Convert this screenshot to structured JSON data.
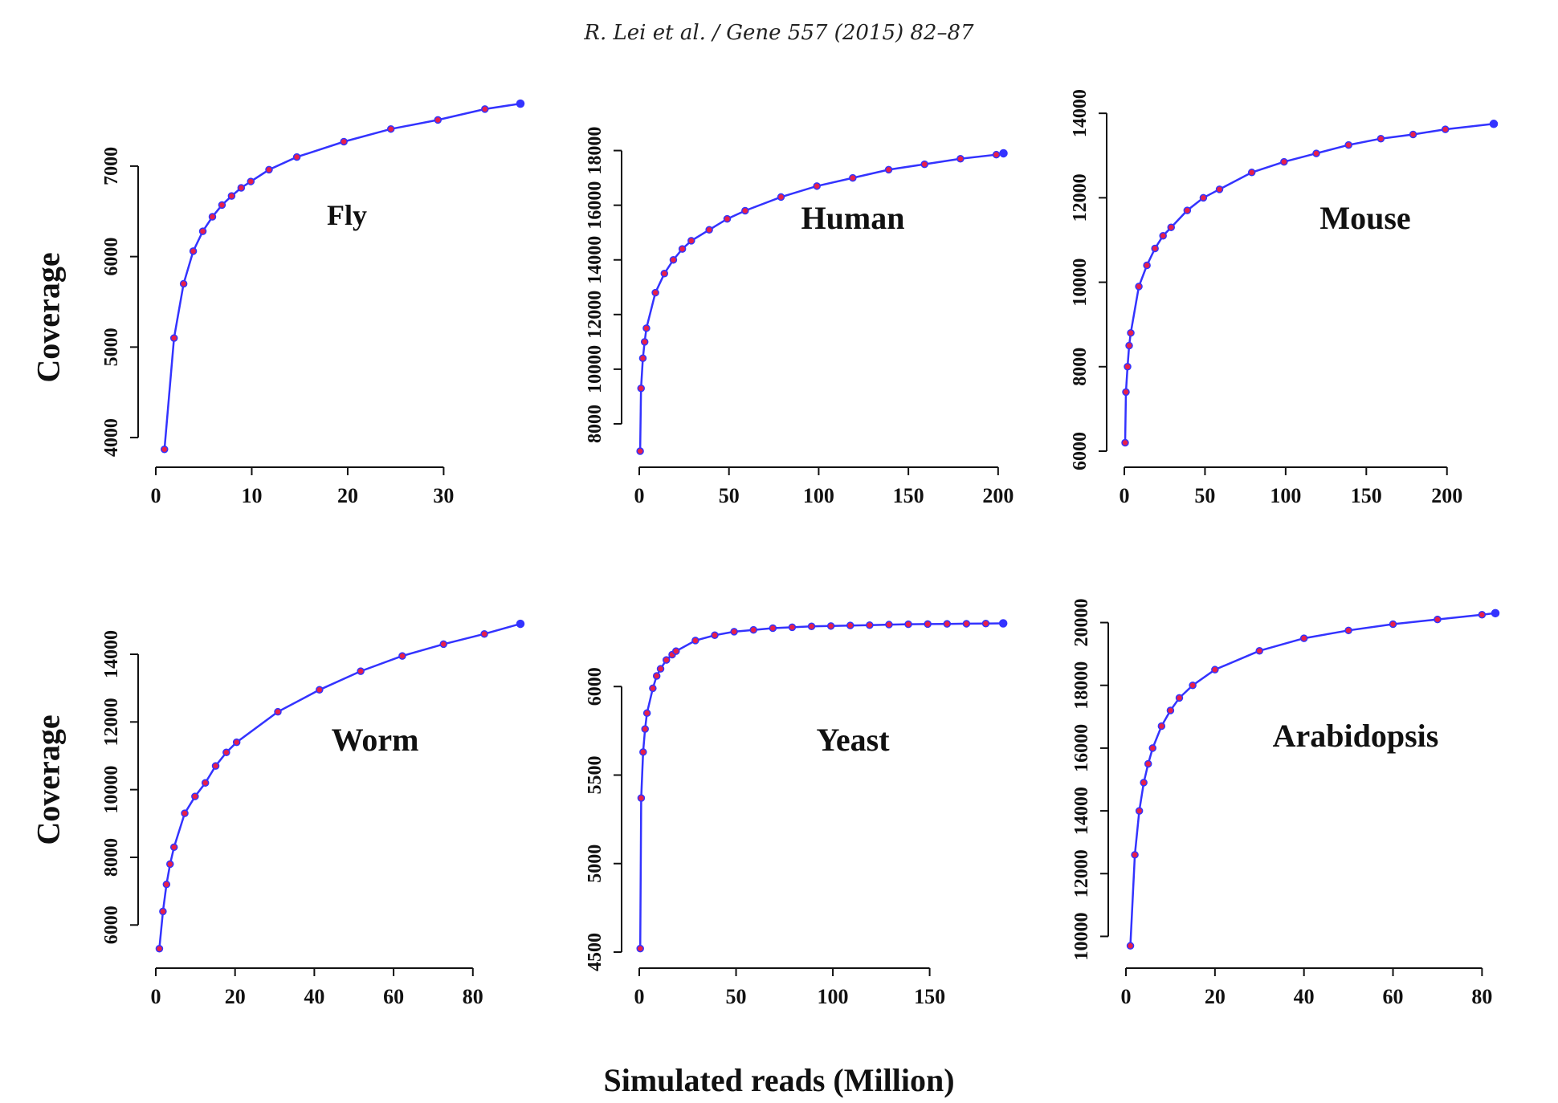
{
  "header": {
    "citation": "R. Lei et al. / Gene 557 (2015) 82–87"
  },
  "labels": {
    "ylabel_top": "Coverage",
    "ylabel_bottom": "Coverage",
    "xlabel": "Simulated reads (Million)"
  },
  "colors": {
    "line": "#3333ff",
    "marker": "#e8204a",
    "axis": "#111111"
  },
  "chart_data": [
    {
      "type": "line",
      "title": "Fly",
      "xticks": [
        0,
        10,
        20,
        30
      ],
      "yticks": [
        4000,
        5000,
        6000,
        7000
      ],
      "xlim": [
        0,
        38
      ],
      "ylim": [
        3850,
        7700
      ],
      "x": [
        0.9,
        1.9,
        2.9,
        3.9,
        4.9,
        5.9,
        6.9,
        7.9,
        8.9,
        9.9,
        11.8,
        14.7,
        19.6,
        24.5,
        29.4,
        34.3,
        38
      ],
      "y": [
        3870,
        5100,
        5700,
        6060,
        6280,
        6440,
        6570,
        6670,
        6760,
        6830,
        6960,
        7100,
        7270,
        7410,
        7510,
        7630,
        7690
      ],
      "ylabel": "",
      "xlabel": ""
    },
    {
      "type": "line",
      "title": "Human",
      "xticks": [
        0,
        50,
        100,
        150,
        200
      ],
      "yticks": [
        8000,
        10000,
        12000,
        14000,
        16000,
        18000
      ],
      "xlim": [
        0,
        205
      ],
      "ylim": [
        7000,
        19750
      ],
      "x": [
        0.5,
        1,
        2,
        3,
        4,
        9,
        14,
        19,
        24,
        29,
        39,
        49,
        59,
        79,
        99,
        119,
        139,
        159,
        179,
        199,
        203
      ],
      "y": [
        7000,
        9300,
        10400,
        11000,
        11500,
        12800,
        13500,
        14000,
        14400,
        14700,
        15100,
        15500,
        15800,
        16300,
        16700,
        17000,
        17300,
        17500,
        17700,
        17850,
        17900
      ],
      "ylabel": "",
      "xlabel": ""
    },
    {
      "type": "line",
      "title": "Mouse",
      "xticks": [
        0,
        50,
        100,
        150,
        200
      ],
      "yticks": [
        6000,
        8000,
        10000,
        12000,
        14000
      ],
      "xlim": [
        0,
        230
      ],
      "ylim": [
        6000,
        14250
      ],
      "x": [
        0.5,
        1,
        2,
        3,
        4,
        9,
        14,
        19,
        24,
        29,
        39,
        49,
        59,
        79,
        99,
        119,
        139,
        159,
        179,
        199,
        229
      ],
      "y": [
        6200,
        7400,
        8000,
        8500,
        8800,
        9900,
        10400,
        10800,
        11100,
        11300,
        11700,
        12000,
        12200,
        12600,
        12850,
        13050,
        13250,
        13400,
        13500,
        13620,
        13750
      ],
      "ylabel": "",
      "xlabel": ""
    },
    {
      "type": "line",
      "title": "Worm",
      "xticks": [
        0,
        20,
        40,
        60,
        80
      ],
      "yticks": [
        6000,
        8000,
        10000,
        12000,
        14000
      ],
      "xlim": [
        0,
        92
      ],
      "ylim": [
        5200,
        15400
      ],
      "x": [
        0.9,
        1.8,
        2.7,
        3.6,
        4.6,
        7.3,
        9.9,
        12.5,
        15.1,
        17.8,
        20.4,
        30.8,
        41.3,
        51.7,
        62.2,
        72.6,
        82.9,
        92
      ],
      "y": [
        5300,
        6400,
        7200,
        7800,
        8300,
        9300,
        9800,
        10200,
        10700,
        11100,
        11400,
        12300,
        12950,
        13500,
        13950,
        14300,
        14600,
        14900
      ],
      "ylabel": "",
      "xlabel": ""
    },
    {
      "type": "line",
      "title": "Yeast",
      "xticks": [
        0,
        50,
        100,
        150
      ],
      "yticks": [
        4500,
        5000,
        5500,
        6000
      ],
      "xlim": [
        0,
        190
      ],
      "ylim": [
        4500,
        6450
      ],
      "x": [
        0.5,
        1,
        2,
        3,
        4,
        7,
        9,
        11,
        14,
        17,
        19,
        29,
        39,
        49,
        59,
        69,
        79,
        89,
        99,
        109,
        119,
        129,
        139,
        149,
        159,
        169,
        179,
        188
      ],
      "y": [
        4520,
        5370,
        5630,
        5760,
        5850,
        5990,
        6060,
        6100,
        6150,
        6180,
        6200,
        6260,
        6290,
        6310,
        6320,
        6330,
        6335,
        6340,
        6342,
        6345,
        6347,
        6350,
        6352,
        6353,
        6354,
        6355,
        6356,
        6357
      ],
      "ylabel": "",
      "xlabel": ""
    },
    {
      "type": "line",
      "title": "Arabidopsis",
      "xticks": [
        0,
        20,
        40,
        60,
        80
      ],
      "yticks": [
        10000,
        12000,
        14000,
        16000,
        18000,
        20000
      ],
      "xlim": [
        0,
        83
      ],
      "ylim": [
        9500,
        20500
      ],
      "x": [
        1,
        2,
        3,
        4,
        5,
        6,
        8,
        10,
        12,
        15,
        20,
        30,
        40,
        50,
        60,
        70,
        80,
        83
      ],
      "y": [
        9700,
        12600,
        14000,
        14900,
        15500,
        16000,
        16700,
        17200,
        17600,
        18000,
        18500,
        19100,
        19500,
        19750,
        19950,
        20100,
        20250,
        20300
      ],
      "ylabel": "",
      "xlabel": ""
    }
  ]
}
